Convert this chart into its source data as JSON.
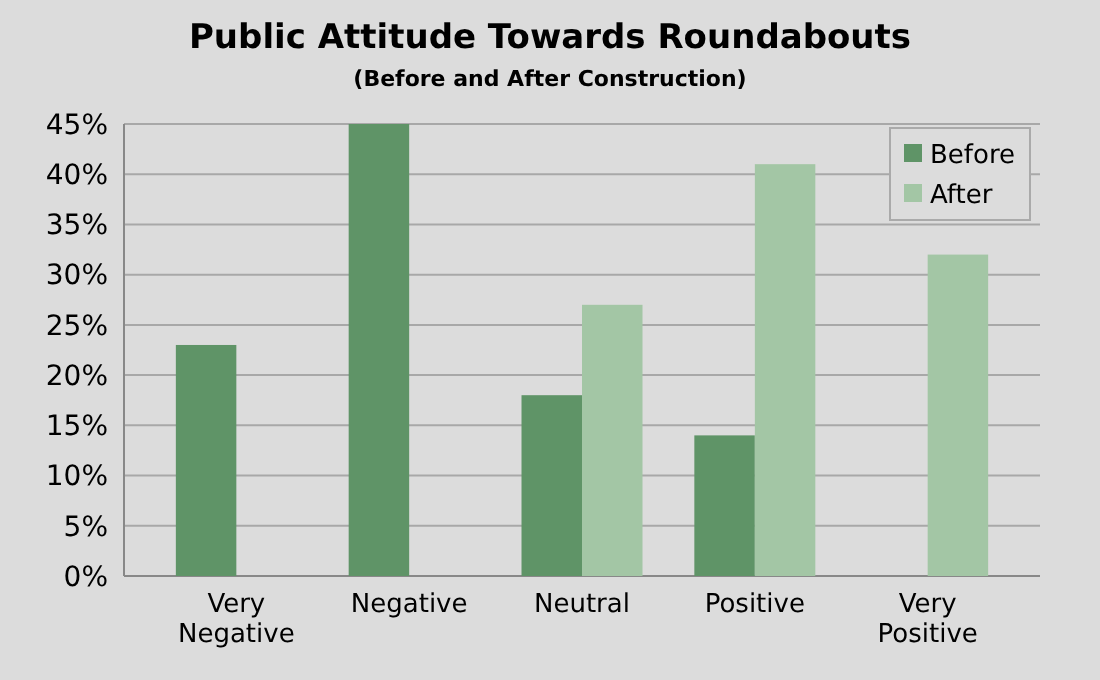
{
  "chart_data": {
    "type": "bar",
    "title": "Public Attitude Towards Roundabouts",
    "subtitle": "(Before and After Construction)",
    "categories": [
      "Very Negative",
      "Negative",
      "Neutral",
      "Positive",
      "Very Positive"
    ],
    "series": [
      {
        "name": "Before",
        "color": "#5f9467",
        "values": [
          23,
          45,
          18,
          14,
          0
        ]
      },
      {
        "name": "After",
        "color": "#a3c6a5",
        "values": [
          0,
          0,
          27,
          41,
          32
        ]
      }
    ],
    "ylim": [
      0,
      45
    ],
    "yticks": [
      {
        "value": 0,
        "label": "0%"
      },
      {
        "value": 5,
        "label": "5%"
      },
      {
        "value": 10,
        "label": "10%"
      },
      {
        "value": 15,
        "label": "15%"
      },
      {
        "value": 20,
        "label": "20%"
      },
      {
        "value": 25,
        "label": "25%"
      },
      {
        "value": 30,
        "label": "30%"
      },
      {
        "value": 35,
        "label": "35%"
      },
      {
        "value": 40,
        "label": "40%"
      },
      {
        "value": 45,
        "label": "45%"
      }
    ],
    "grid": "y",
    "legend": "top right"
  }
}
